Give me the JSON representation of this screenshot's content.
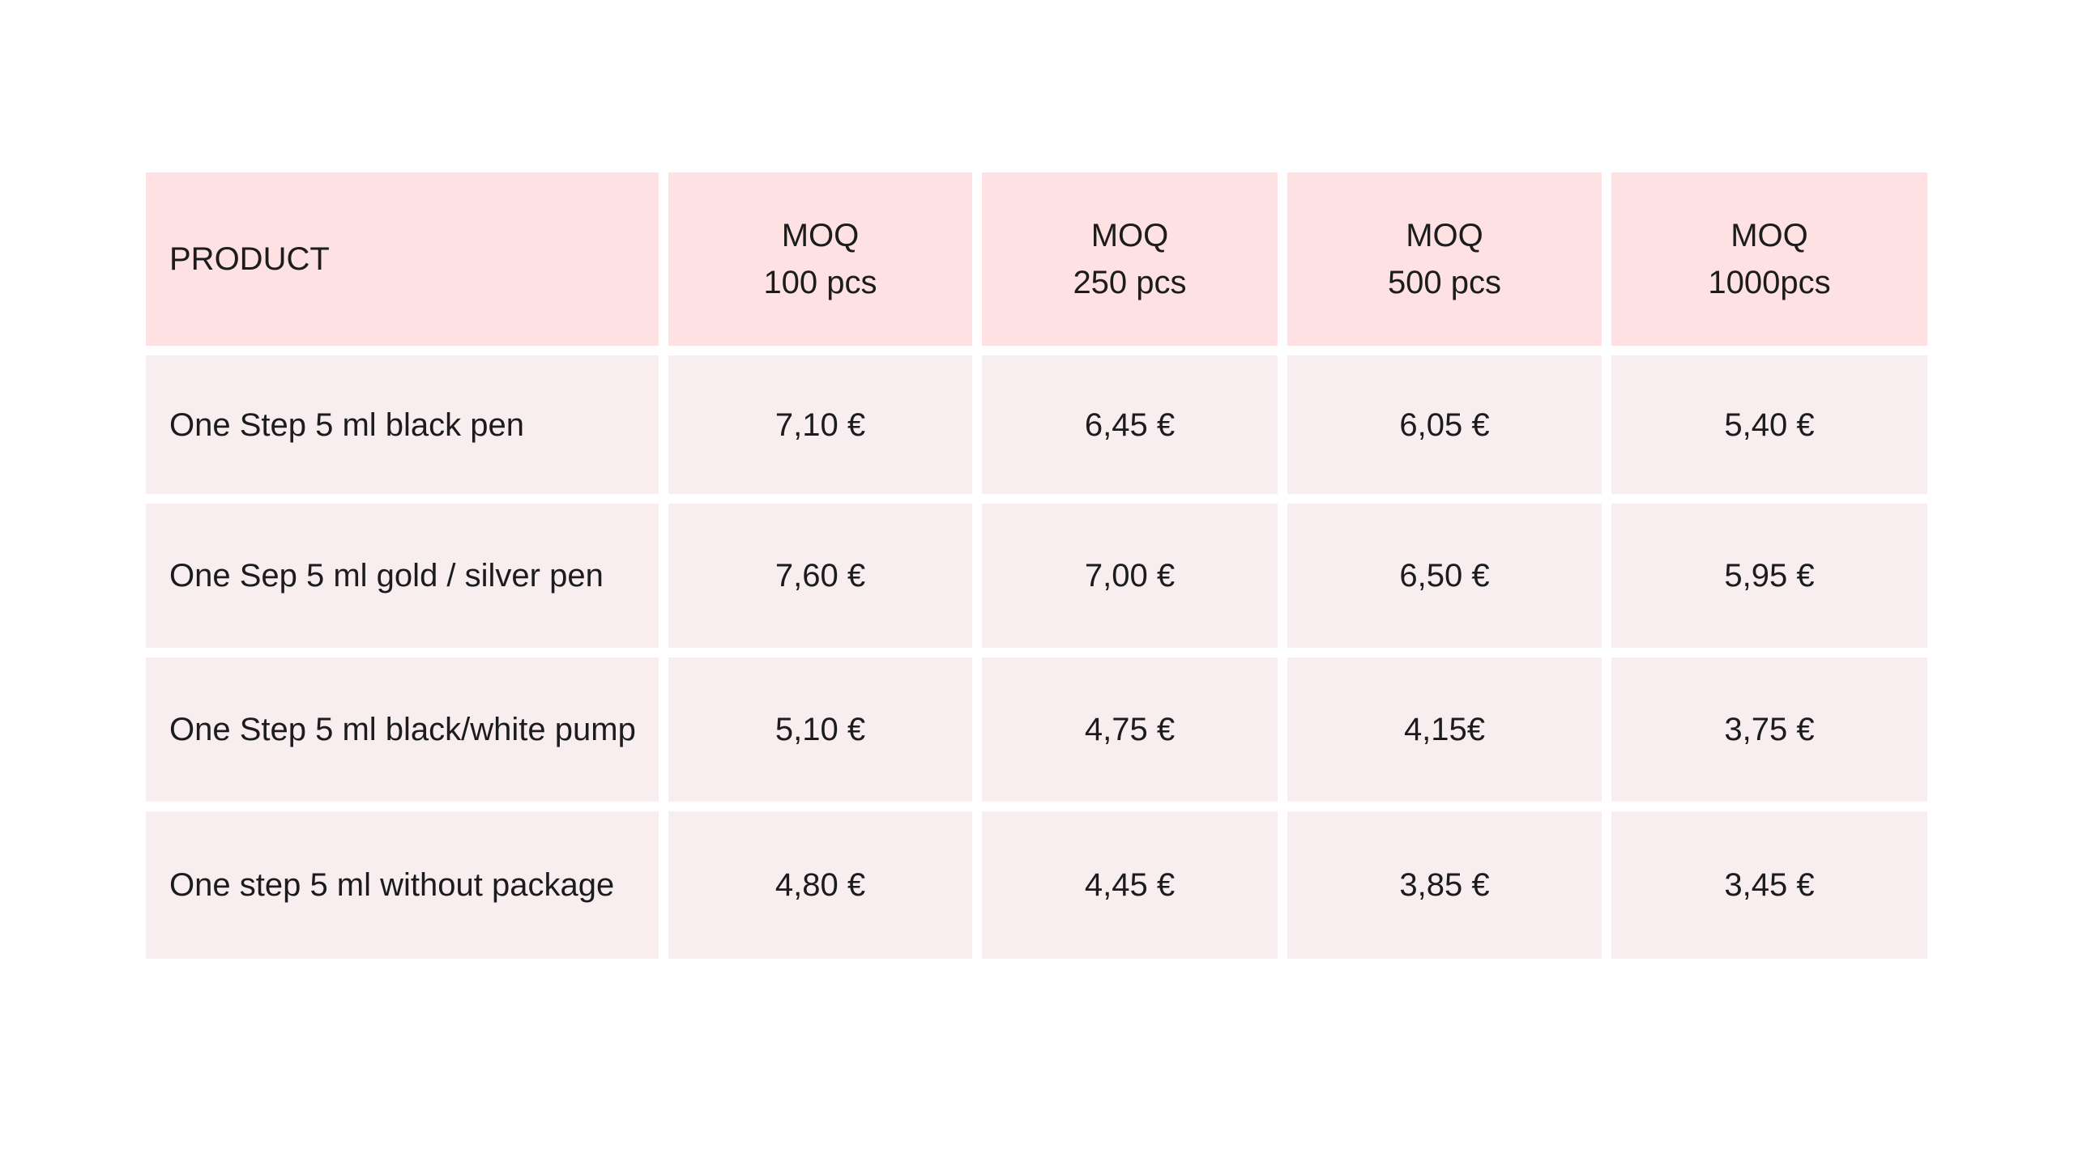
{
  "table": {
    "headers": [
      {
        "lines": [
          "PRODUCT"
        ]
      },
      {
        "lines": [
          "MOQ",
          "100 pcs"
        ]
      },
      {
        "lines": [
          "MOQ",
          "250 pcs"
        ]
      },
      {
        "lines": [
          "MOQ",
          "500 pcs"
        ]
      },
      {
        "lines": [
          "MOQ",
          "1000pcs"
        ]
      }
    ],
    "rows": [
      [
        "One Step 5 ml black pen",
        "7,10 €",
        "6,45 €",
        "6,05 €",
        "5,40 €"
      ],
      [
        "One Sep 5 ml gold / silver pen",
        "7,60 €",
        "7,00 €",
        "6,50 €",
        "5,95 €"
      ],
      [
        "One Step 5 ml black/white pump",
        "5,10 €",
        "4,75 €",
        "4,15€",
        "3,75 €"
      ],
      [
        "One step 5 ml without package",
        "4,80 €",
        "4,45 €",
        "3,85 €",
        "3,45 €"
      ]
    ]
  },
  "colors": {
    "header_bg": "#fde1e3",
    "row_bg": "#f8eeef",
    "text": "#1c1c1c"
  }
}
